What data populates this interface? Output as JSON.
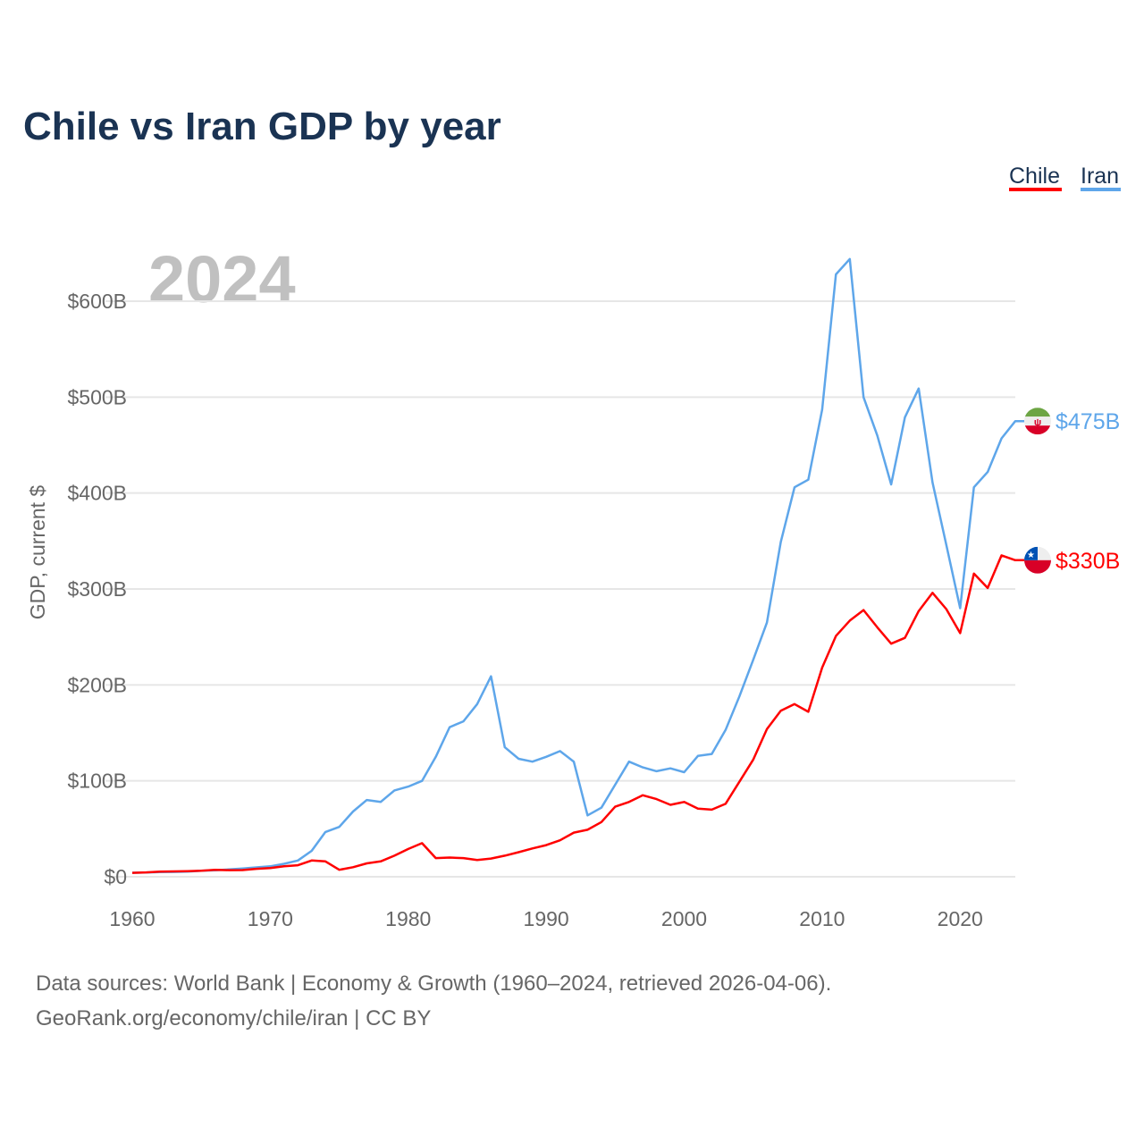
{
  "title": "Chile vs Iran GDP by year",
  "current_year_label": "2024",
  "footer": {
    "line1": "Data sources: World Bank | Economy & Growth (1960–2024, retrieved 2026-04-06).",
    "line2": "GeoRank.org/economy/chile/iran | CC BY"
  },
  "chart_data": {
    "type": "line",
    "title": "Chile vs Iran GDP by year",
    "xlabel": "",
    "ylabel": "GDP, current $",
    "xlim": [
      1960,
      2024
    ],
    "ylim": [
      0,
      650
    ],
    "grid": true,
    "legend_position": "top-right",
    "x_ticks": [
      1960,
      1970,
      1980,
      1990,
      2000,
      2010,
      2020
    ],
    "y_ticks": [
      0,
      100,
      200,
      300,
      400,
      500,
      600
    ],
    "y_tick_labels": [
      "$0",
      "$100B",
      "$200B",
      "$300B",
      "$400B",
      "$500B",
      "$600B"
    ],
    "x_start": 1960,
    "series": [
      {
        "name": "Chile",
        "color": "#ff0000",
        "flag": "chile-flag",
        "end_label": "$330B",
        "values": [
          4.1,
          4.6,
          5.4,
          5.6,
          5.8,
          6.2,
          7.2,
          6.9,
          7.0,
          8.3,
          9.0,
          11,
          12,
          17,
          16,
          7.3,
          10,
          14,
          16,
          22,
          29,
          35,
          19.5,
          20,
          19.5,
          17.5,
          19,
          22,
          25.6,
          29.5,
          33,
          38,
          46,
          49,
          57,
          73,
          78,
          85,
          81,
          75,
          78,
          71,
          70,
          76,
          99,
          122,
          154,
          173,
          180,
          172,
          218,
          251,
          267,
          278,
          260,
          243,
          249,
          277,
          296,
          279,
          254,
          316,
          301,
          335,
          330
        ]
      },
      {
        "name": "Iran",
        "color": "#5ea6ea",
        "flag": "iran-flag",
        "end_label": "$475B",
        "values": [
          4.2,
          4.5,
          4.8,
          5.0,
          5.4,
          6.2,
          6.8,
          7.6,
          8.6,
          9.8,
          10.9,
          13.5,
          17,
          27,
          46.7,
          52,
          68,
          80,
          78,
          90,
          94,
          100,
          125,
          156,
          162,
          180,
          209,
          135,
          123,
          120,
          125,
          131,
          120,
          64,
          72,
          96,
          120,
          114,
          110,
          113,
          109,
          126,
          128,
          153,
          188,
          226,
          265,
          349,
          406,
          414,
          487,
          628,
          644,
          500,
          460,
          409,
          479,
          509,
          411,
          346,
          280,
          406,
          422,
          457,
          475
        ]
      }
    ]
  }
}
